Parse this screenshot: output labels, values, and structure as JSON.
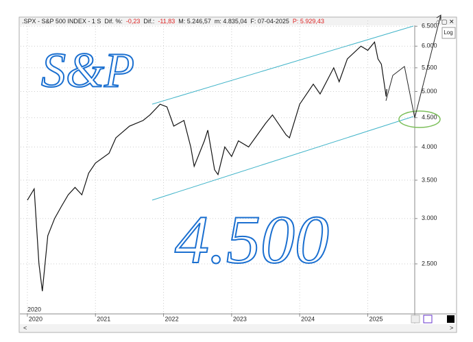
{
  "chart_data": {
    "type": "line",
    "header": [
      ".SPX - S&P 500 INDEX - 1 S",
      "Dif. %:",
      "-0,23",
      "Dif.:",
      "-11,83",
      "M: 5.246,57",
      "m: 4.835,04",
      "F: 07-04-2025",
      "P: 5.929,43"
    ],
    "log_button": "Log",
    "period_label": "2020",
    "annotations": [
      "S&P",
      "4.500"
    ],
    "log_scale": true,
    "grid": true,
    "color": "#111111",
    "x": [
      2020.0,
      2020.1,
      2020.17,
      2020.22,
      2020.3,
      2020.4,
      2020.5,
      2020.6,
      2020.7,
      2020.8,
      2020.9,
      2021.0,
      2021.2,
      2021.3,
      2021.5,
      2021.7,
      2021.8,
      2021.95,
      2022.05,
      2022.15,
      2022.3,
      2022.4,
      2022.45,
      2022.6,
      2022.65,
      2022.75,
      2022.8,
      2022.9,
      2023.0,
      2023.1,
      2023.25,
      2023.5,
      2023.6,
      2023.8,
      2023.85,
      2024.0,
      2024.2,
      2024.3,
      2024.5,
      2024.58,
      2024.7,
      2024.9,
      2025.0,
      2025.1,
      2025.15,
      2025.2,
      2025.27,
      2025.28
    ],
    "series": [
      {
        "color": "#111111",
        "values": [
          3230,
          3380,
          2500,
          2240,
          2800,
          3000,
          3150,
          3300,
          3400,
          3300,
          3600,
          3750,
          3900,
          4150,
          4350,
          4450,
          4550,
          4750,
          4700,
          4350,
          4450,
          4000,
          3700,
          4100,
          4280,
          3650,
          3580,
          4000,
          3850,
          4100,
          4000,
          4400,
          4550,
          4200,
          4150,
          4750,
          5150,
          4950,
          5500,
          5200,
          5700,
          6000,
          5900,
          6100,
          5700,
          5580,
          4900,
          5050
        ]
      }
    ],
    "xlim": [
      2019.9,
      2025.69
    ],
    "xticks": [
      2020,
      2021,
      2022,
      2023,
      2024,
      2025
    ],
    "ylim": [
      2050,
      6650
    ],
    "yticks": [
      {
        "value": 2500,
        "label": "2.500"
      },
      {
        "value": 3000,
        "label": "3.000"
      },
      {
        "value": 3500,
        "label": "3.500"
      },
      {
        "value": 4000,
        "label": "4.000"
      },
      {
        "value": 4500,
        "label": "4.500"
      },
      {
        "value": 5000,
        "label": "5.000"
      },
      {
        "value": 5500,
        "label": "5.500"
      },
      {
        "value": 6000,
        "label": "6.000"
      },
      {
        "value": 6500,
        "label": "6.500"
      }
    ]
  }
}
